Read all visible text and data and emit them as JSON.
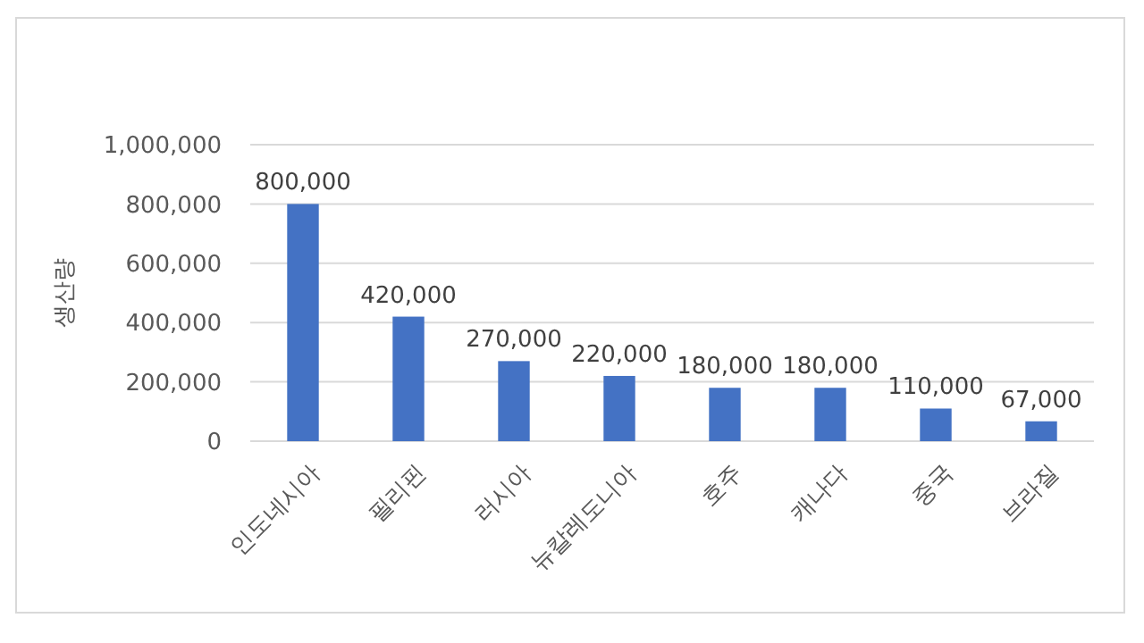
{
  "chart_data": {
    "type": "bar",
    "ylabel": "생산량",
    "categories": [
      "인도네시아",
      "필리핀",
      "러시아",
      "뉴칼레도니아",
      "호주",
      "캐나다",
      "중국",
      "브라질"
    ],
    "values": [
      800000,
      420000,
      270000,
      220000,
      180000,
      180000,
      110000,
      67000
    ],
    "value_labels": [
      "800,000",
      "420,000",
      "270,000",
      "220,000",
      "180,000",
      "180,000",
      "110,000",
      "67,000"
    ],
    "color": "#4472c4",
    "ylim": [
      0,
      1000000
    ],
    "yticks": [
      {
        "value": 0,
        "label": "0"
      },
      {
        "value": 200000,
        "label": "200,000"
      },
      {
        "value": 400000,
        "label": "400,000"
      },
      {
        "value": 600000,
        "label": "600,000"
      },
      {
        "value": 800000,
        "label": "800,000"
      },
      {
        "value": 1000000,
        "label": "1,000,000"
      }
    ],
    "grid": "y"
  }
}
